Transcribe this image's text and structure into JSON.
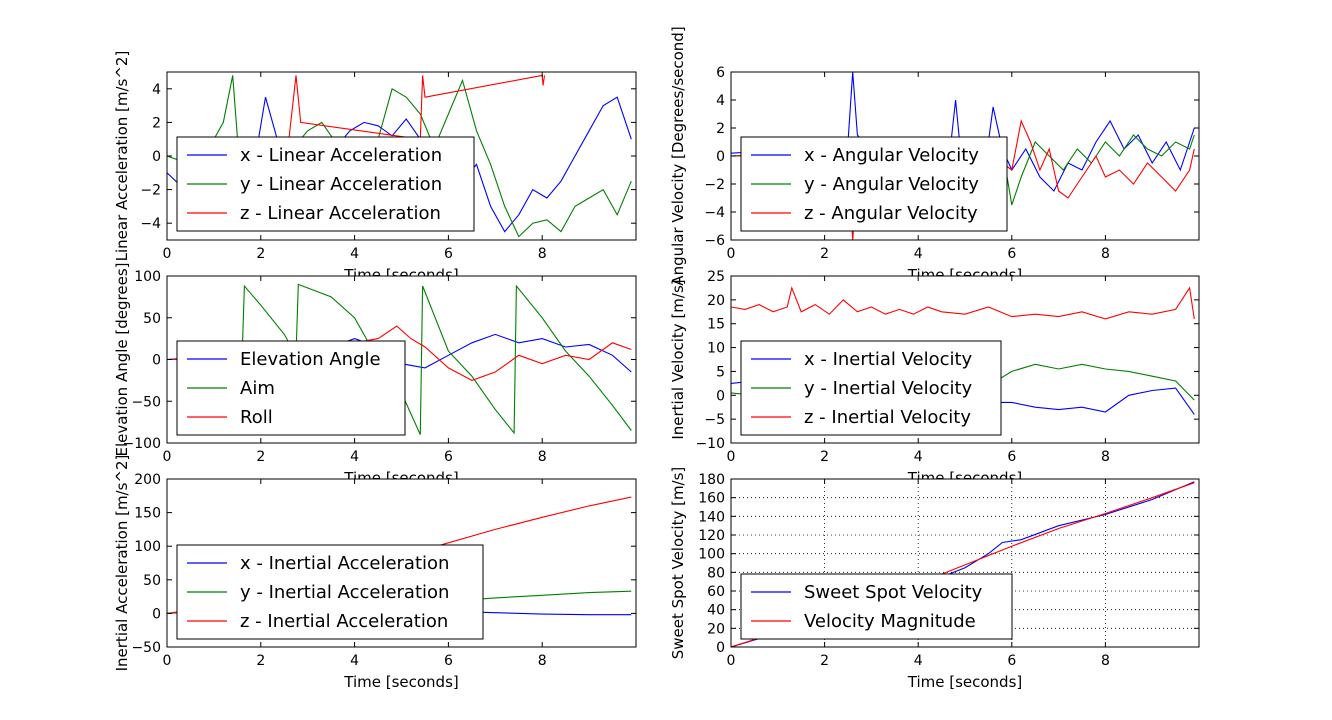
{
  "charts": [
    {
      "type": "line",
      "xlabel": "Time [seconds]",
      "ylabel": "Linear Acceleration [m/s^2]",
      "xlim": [
        0,
        10
      ],
      "ylim": [
        -5,
        5
      ],
      "xticks": [
        "0",
        "2",
        "4",
        "6",
        "8"
      ],
      "yticks": [
        "4",
        "2",
        "0",
        "−2",
        "−4"
      ],
      "grid": false,
      "legend_loc": "lower-left",
      "series": [
        {
          "name": "x - Linear Acceleration",
          "color": "#0000ff",
          "x": [
            0,
            0.3,
            0.6,
            0.9,
            1.2,
            1.5,
            1.8,
            2.1,
            2.4,
            2.7,
            3.0,
            3.3,
            3.6,
            3.9,
            4.2,
            4.5,
            4.8,
            5.1,
            5.4,
            5.7,
            6.0,
            6.3,
            6.6,
            6.9,
            7.2,
            7.5,
            7.8,
            8.1,
            8.4,
            8.7,
            9.0,
            9.3,
            9.6,
            9.9
          ],
          "y": [
            -1.0,
            -1.8,
            -2.5,
            -3.5,
            -4.2,
            -3.0,
            -1.5,
            3.5,
            0.5,
            -4.0,
            -2.0,
            -1.0,
            0.5,
            1.5,
            2.0,
            1.8,
            1.2,
            2.2,
            1.0,
            0.5,
            -0.8,
            -1.5,
            -0.5,
            -3.0,
            -4.5,
            -3.5,
            -2.0,
            -2.5,
            -1.5,
            0.0,
            1.5,
            3.0,
            3.5,
            1.0
          ]
        },
        {
          "name": "y - Linear Acceleration",
          "color": "#008000",
          "x": [
            0,
            0.3,
            0.6,
            0.9,
            1.2,
            1.4,
            1.6,
            1.8,
            2.1,
            2.4,
            2.7,
            3.0,
            3.3,
            3.6,
            3.9,
            4.2,
            4.5,
            4.8,
            5.1,
            5.4,
            5.7,
            6.0,
            6.3,
            6.6,
            6.9,
            7.2,
            7.5,
            7.8,
            8.1,
            8.4,
            8.7,
            9.0,
            9.3,
            9.6,
            9.9
          ],
          "y": [
            0.0,
            -0.3,
            -1.0,
            0.5,
            2.0,
            4.8,
            -2.5,
            1.0,
            0.5,
            -3.5,
            0.5,
            1.5,
            2.0,
            0.8,
            -0.5,
            -2.5,
            1.0,
            4.0,
            3.5,
            2.5,
            0.5,
            2.5,
            4.5,
            1.5,
            -0.5,
            -3.0,
            -4.8,
            -4.0,
            -3.8,
            -4.5,
            -3.0,
            -2.5,
            -2.0,
            -3.5,
            -1.5
          ]
        },
        {
          "name": "z - Linear Acceleration",
          "color": "#ff0000",
          "x": [
            2.6,
            2.75,
            2.85,
            5.4,
            5.45,
            5.5,
            8.0,
            8.02,
            8.05
          ],
          "y": [
            1.0,
            4.8,
            2.0,
            1.0,
            4.8,
            3.5,
            4.8,
            4.2,
            4.8
          ]
        }
      ]
    },
    {
      "type": "line",
      "xlabel": "Time [seconds]",
      "ylabel": "Angular Velocity [Degrees/second]",
      "xlim": [
        0,
        10
      ],
      "ylim": [
        -6,
        6
      ],
      "xticks": [
        "0",
        "2",
        "4",
        "6",
        "8"
      ],
      "yticks": [
        "6",
        "4",
        "2",
        "0",
        "−2",
        "−4",
        "−6"
      ],
      "grid": false,
      "legend_loc": "center-left",
      "series": [
        {
          "name": "x - Angular Velocity",
          "color": "#0000ff",
          "x": [
            0,
            0.5,
            1.0,
            1.5,
            2.0,
            2.4,
            2.5,
            2.6,
            2.7,
            3.0,
            3.5,
            4.0,
            4.5,
            4.7,
            4.8,
            4.9,
            5.2,
            5.5,
            5.6,
            5.8,
            6.0,
            6.3,
            6.6,
            6.9,
            7.2,
            7.5,
            7.8,
            8.1,
            8.4,
            8.7,
            9.0,
            9.3,
            9.6,
            9.9
          ],
          "y": [
            0.2,
            0.3,
            0.0,
            0.5,
            0.2,
            0.0,
            1.0,
            6.0,
            1.5,
            0.3,
            0.0,
            0.5,
            0.2,
            1.0,
            4.0,
            0.5,
            0.2,
            1.0,
            3.5,
            0.5,
            -1.0,
            0.5,
            -1.5,
            -2.5,
            -0.5,
            -1.0,
            1.0,
            2.5,
            0.5,
            1.5,
            -0.5,
            1.0,
            -1.0,
            2.0
          ]
        },
        {
          "name": "y - Angular Velocity",
          "color": "#008000",
          "x": [
            0,
            0.5,
            1.0,
            1.5,
            2.0,
            2.5,
            3.0,
            3.5,
            4.0,
            4.5,
            5.0,
            5.5,
            5.8,
            6.0,
            6.2,
            6.5,
            6.8,
            7.1,
            7.4,
            7.7,
            8.0,
            8.3,
            8.6,
            8.9,
            9.2,
            9.5,
            9.8,
            9.9
          ],
          "y": [
            0.0,
            0.1,
            0.0,
            0.2,
            0.1,
            0.0,
            0.1,
            0.0,
            0.2,
            0.1,
            0.0,
            0.1,
            0.5,
            -3.5,
            -1.5,
            1.0,
            0.0,
            -1.0,
            0.5,
            -0.5,
            1.0,
            0.0,
            1.5,
            0.5,
            0.0,
            1.0,
            0.5,
            1.5
          ]
        },
        {
          "name": "z - Angular Velocity",
          "color": "#ff0000",
          "x": [
            0,
            0.5,
            1.0,
            1.5,
            2.0,
            2.5,
            2.6,
            2.7,
            3.0,
            3.5,
            4.0,
            4.5,
            5.0,
            5.5,
            5.8,
            6.0,
            6.2,
            6.4,
            6.6,
            6.8,
            7.0,
            7.2,
            7.4,
            7.6,
            7.8,
            8.0,
            8.3,
            8.6,
            8.9,
            9.2,
            9.5,
            9.8,
            9.9
          ],
          "y": [
            0.0,
            0.0,
            0.1,
            0.0,
            0.0,
            -0.5,
            -6.0,
            -1.0,
            0.0,
            0.1,
            0.0,
            0.1,
            0.0,
            0.0,
            -0.5,
            -1.0,
            2.5,
            1.0,
            -1.0,
            0.5,
            -2.5,
            -3.0,
            -2.0,
            -1.0,
            0.0,
            -1.5,
            -1.0,
            -2.0,
            -0.5,
            -1.5,
            -2.5,
            -1.0,
            0.5
          ]
        }
      ]
    },
    {
      "type": "line",
      "xlabel": "Time [seconds]",
      "ylabel": "Elevation Angle [degrees]",
      "xlim": [
        0,
        10
      ],
      "ylim": [
        -100,
        100
      ],
      "xticks": [
        "0",
        "2",
        "4",
        "6",
        "8"
      ],
      "yticks": [
        "100",
        "50",
        "0",
        "−50",
        "−100"
      ],
      "grid": false,
      "legend_loc": "lower-left",
      "series": [
        {
          "name": "Elevation Angle",
          "color": "#0000ff",
          "x": [
            0,
            0.5,
            1.0,
            1.5,
            2.0,
            2.5,
            3.0,
            3.5,
            4.0,
            4.5,
            5.0,
            5.5,
            6.0,
            6.5,
            7.0,
            7.5,
            8.0,
            8.5,
            9.0,
            9.5,
            9.9
          ],
          "y": [
            0,
            2,
            -2,
            3,
            -1,
            2,
            5,
            15,
            25,
            15,
            -5,
            -10,
            5,
            20,
            30,
            20,
            25,
            15,
            18,
            5,
            -15
          ]
        },
        {
          "name": "Aim",
          "color": "#008000",
          "x": [
            0,
            0.5,
            1.0,
            1.6,
            1.65,
            2.0,
            2.5,
            2.75,
            2.8,
            3.5,
            4.0,
            4.5,
            5.0,
            5.4,
            5.45,
            6.0,
            6.5,
            7.0,
            7.4,
            7.45,
            8.0,
            8.5,
            9.0,
            9.5,
            9.9
          ],
          "y": [
            0,
            0,
            0,
            0,
            88,
            65,
            30,
            5,
            90,
            75,
            50,
            0,
            -40,
            -90,
            88,
            10,
            -20,
            -60,
            -88,
            88,
            50,
            10,
            -20,
            -55,
            -85
          ]
        },
        {
          "name": "Roll",
          "color": "#ff0000",
          "x": [
            0,
            0.5,
            1.0,
            1.5,
            2.0,
            2.5,
            3.0,
            3.5,
            4.0,
            4.5,
            4.9,
            5.2,
            5.5,
            6.0,
            6.5,
            7.0,
            7.5,
            8.0,
            8.5,
            9.0,
            9.5,
            9.9
          ],
          "y": [
            0,
            1,
            0,
            2,
            0,
            1,
            5,
            15,
            20,
            25,
            40,
            25,
            15,
            -10,
            -25,
            -15,
            5,
            -5,
            5,
            0,
            20,
            12
          ]
        }
      ]
    },
    {
      "type": "line",
      "xlabel": "Time [seconds]",
      "ylabel": "Inertial Velocity [m/s]",
      "xlim": [
        0,
        10
      ],
      "ylim": [
        -10,
        25
      ],
      "xticks": [
        "0",
        "2",
        "4",
        "6",
        "8"
      ],
      "yticks": [
        "25",
        "20",
        "15",
        "10",
        "5",
        "0",
        "−5",
        "−10"
      ],
      "grid": false,
      "legend_loc": "lower-left",
      "series": [
        {
          "name": "x - Inertial Velocity",
          "color": "#0000ff",
          "x": [
            0,
            0.5,
            1.0,
            1.5,
            2.0,
            2.5,
            3.0,
            3.5,
            4.0,
            4.5,
            5.0,
            5.5,
            6.0,
            6.5,
            7.0,
            7.5,
            8.0,
            8.5,
            9.0,
            9.5,
            9.9
          ],
          "y": [
            2.5,
            3.0,
            2.0,
            2.5,
            2.0,
            3.0,
            2.0,
            2.5,
            1.5,
            1.0,
            -1.0,
            -1.5,
            -1.5,
            -2.5,
            -3.0,
            -2.5,
            -3.5,
            0.0,
            1.0,
            1.5,
            -4.0
          ]
        },
        {
          "name": "y - Inertial Velocity",
          "color": "#008000",
          "x": [
            0,
            0.5,
            1.0,
            1.5,
            2.0,
            2.5,
            3.0,
            3.5,
            4.0,
            4.5,
            5.0,
            5.5,
            6.0,
            6.5,
            7.0,
            7.5,
            8.0,
            8.5,
            9.0,
            9.5,
            9.9
          ],
          "y": [
            0.5,
            0.0,
            1.0,
            0.5,
            0.0,
            0.5,
            0.0,
            1.0,
            0.5,
            0.5,
            0.0,
            2.0,
            5.0,
            6.5,
            5.5,
            6.5,
            5.5,
            5.0,
            4.0,
            3.0,
            -1.0
          ]
        },
        {
          "name": "z - Inertial Velocity",
          "color": "#ff0000",
          "x": [
            0,
            0.3,
            0.6,
            0.9,
            1.2,
            1.3,
            1.5,
            1.8,
            2.1,
            2.4,
            2.7,
            3.0,
            3.3,
            3.6,
            3.9,
            4.2,
            4.5,
            5.0,
            5.5,
            6.0,
            6.5,
            7.0,
            7.5,
            8.0,
            8.5,
            9.0,
            9.5,
            9.8,
            9.9
          ],
          "y": [
            18.5,
            18.0,
            19.0,
            17.5,
            18.5,
            22.5,
            17.5,
            19.0,
            17.0,
            20.0,
            17.5,
            18.5,
            17.0,
            18.0,
            17.0,
            18.5,
            17.5,
            17.0,
            18.5,
            16.5,
            17.0,
            16.5,
            17.5,
            16.0,
            17.5,
            17.0,
            18.0,
            22.5,
            16.0
          ]
        }
      ]
    },
    {
      "type": "line",
      "xlabel": "Time [seconds]",
      "ylabel": "Inertial Acceleration [m/s^2]",
      "xlim": [
        0,
        10
      ],
      "ylim": [
        -50,
        200
      ],
      "xticks": [
        "0",
        "2",
        "4",
        "6",
        "8"
      ],
      "yticks": [
        "200",
        "150",
        "100",
        "50",
        "0",
        "−50"
      ],
      "grid": false,
      "legend_loc": "lower-left",
      "series": [
        {
          "name": "x - Inertial Acceleration",
          "color": "#0000ff",
          "x": [
            0,
            1,
            2,
            3,
            4,
            5,
            6,
            7,
            8,
            9,
            9.9
          ],
          "y": [
            0,
            5,
            5,
            4,
            4,
            4,
            3,
            1,
            -1,
            -2,
            -2
          ]
        },
        {
          "name": "y - Inertial Acceleration",
          "color": "#008000",
          "x": [
            0,
            1,
            2,
            3,
            4,
            5,
            6,
            7,
            8,
            9,
            9.9
          ],
          "y": [
            0,
            5,
            8,
            10,
            12,
            14,
            18,
            23,
            27,
            31,
            33
          ]
        },
        {
          "name": "z - Inertial Acceleration",
          "color": "#ff0000",
          "x": [
            0,
            1,
            2,
            3,
            4,
            5,
            6,
            7,
            8,
            9,
            9.9
          ],
          "y": [
            0,
            10,
            25,
            45,
            65,
            85,
            105,
            125,
            143,
            160,
            173
          ]
        }
      ]
    },
    {
      "type": "line",
      "xlabel": "Time [seconds]",
      "ylabel": "Sweet Spot Velocity [m/s]",
      "xlim": [
        0,
        10
      ],
      "ylim": [
        0,
        180
      ],
      "xticks": [
        "0",
        "2",
        "4",
        "6",
        "8"
      ],
      "yticks": [
        "180",
        "160",
        "140",
        "120",
        "100",
        "80",
        "60",
        "40",
        "20",
        "0"
      ],
      "grid": true,
      "legend_loc": "lower-left",
      "series": [
        {
          "name": "Sweet Spot Velocity",
          "color": "#0000ff",
          "x": [
            0,
            1,
            2,
            3,
            4,
            4.5,
            5,
            5.5,
            5.8,
            6.2,
            7,
            8,
            9,
            9.9
          ],
          "y": [
            0,
            15,
            32,
            50,
            68,
            75,
            85,
            100,
            112,
            115,
            130,
            142,
            158,
            177
          ]
        },
        {
          "name": "Velocity Magnitude",
          "color": "#ff0000",
          "x": [
            0,
            1,
            2,
            3,
            4,
            5,
            6,
            7,
            8,
            9,
            9.9
          ],
          "y": [
            0,
            16,
            33,
            50,
            68,
            88,
            108,
            127,
            143,
            160,
            176
          ]
        }
      ]
    }
  ]
}
